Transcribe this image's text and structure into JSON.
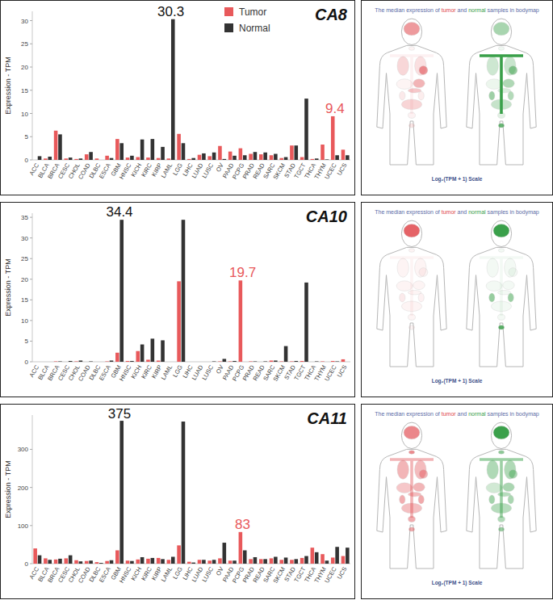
{
  "chart_data": [
    {
      "type": "bar",
      "title": "CA8",
      "y_label": "Expression - TPM",
      "categories": [
        "ACC",
        "BLCA",
        "BRCA",
        "CESC",
        "CHOL",
        "COAD",
        "DLBC",
        "ESCA",
        "GBM",
        "HNSC",
        "KICH",
        "KIRC",
        "KIRP",
        "LAML",
        "LGG",
        "LIHC",
        "LUAD",
        "LUSC",
        "OV",
        "PAAD",
        "PCPG",
        "PRAD",
        "READ",
        "SARC",
        "SKCM",
        "STAD",
        "TGCT",
        "THCA",
        "THYM",
        "UCEC",
        "UCS"
      ],
      "series": [
        {
          "name": "Tumor",
          "color": "#e8595b",
          "values": [
            0,
            0.3,
            6.3,
            0.3,
            0.2,
            1.2,
            0.3,
            0.9,
            4.5,
            0.5,
            0.6,
            0.5,
            0.4,
            0.3,
            5.6,
            0.2,
            1.1,
            0.8,
            3.0,
            1.8,
            2.5,
            1.3,
            1.2,
            1.0,
            0.4,
            3.1,
            0.6,
            0.2,
            3.3,
            9.4,
            2.2
          ]
        },
        {
          "name": "Normal",
          "color": "#333333",
          "values": [
            0.8,
            0.7,
            5.5,
            0.5,
            0.3,
            1.7,
            0,
            0.4,
            3.6,
            0.9,
            4.4,
            4.5,
            2.8,
            30.3,
            3.6,
            0.4,
            1.4,
            1.6,
            0.2,
            0.9,
            1.0,
            1.7,
            1.6,
            1.3,
            0.6,
            3.1,
            13.2,
            0.3,
            0.1,
            1.0,
            1.0
          ]
        }
      ],
      "ylim": [
        0,
        32
      ],
      "yticks": [
        0,
        5,
        10,
        15,
        20,
        25,
        30
      ],
      "grid": false,
      "legend": "top",
      "annotations": [
        {
          "text": "30.3",
          "category": "LAML",
          "color": "#111111"
        },
        {
          "text": "9.4",
          "category": "UCEC",
          "color": "#e8595b"
        }
      ]
    },
    {
      "type": "bar",
      "title": "CA10",
      "y_label": "Expression - TPM",
      "categories": [
        "ACC",
        "BLCA",
        "BRCA",
        "CESC",
        "CHOL",
        "COAD",
        "DLBC",
        "ESCA",
        "GBM",
        "HNSC",
        "KICH",
        "KIRC",
        "KIRP",
        "LAML",
        "LGG",
        "LIHC",
        "LUAD",
        "LUSC",
        "OV",
        "PAAD",
        "PCPG",
        "PRAD",
        "READ",
        "SARC",
        "SKCM",
        "STAD",
        "TGCT",
        "THCA",
        "THYM",
        "UCEC",
        "UCS"
      ],
      "series": [
        {
          "name": "Tumor",
          "color": "#e8595b",
          "values": [
            0,
            0,
            0.1,
            0,
            0.1,
            0,
            0,
            0.1,
            2.2,
            0.2,
            2.6,
            0.5,
            0.3,
            0,
            19.5,
            0,
            0,
            0,
            0.1,
            0.1,
            19.7,
            0.1,
            0,
            0.3,
            0.1,
            0.1,
            0.2,
            0,
            0.1,
            0.2,
            0.6
          ]
        },
        {
          "name": "Normal",
          "color": "#333333",
          "values": [
            0,
            0,
            0.1,
            0.2,
            0.3,
            0.1,
            0,
            0.3,
            34.4,
            0.2,
            4.2,
            5.6,
            5.2,
            0,
            34.4,
            0,
            0,
            0.1,
            0.7,
            0.2,
            0,
            0.1,
            0.1,
            0.3,
            3.8,
            0.2,
            19.2,
            0.1,
            0,
            0.1,
            0
          ]
        }
      ],
      "ylim": [
        0,
        36
      ],
      "yticks": [
        0,
        5,
        10,
        15,
        20,
        25,
        30,
        35
      ],
      "grid": false,
      "annotations": [
        {
          "text": "34.4",
          "category": "GBM",
          "color": "#111111"
        },
        {
          "text": "19.7",
          "category": "PCPG",
          "color": "#e8595b"
        }
      ]
    },
    {
      "type": "bar",
      "title": "CA11",
      "y_label": "Expression - TPM",
      "categories": [
        "ACC",
        "BLCA",
        "BRCA",
        "CESC",
        "CHOL",
        "COAD",
        "DLBC",
        "ESCA",
        "GBM",
        "HNSC",
        "KICH",
        "KIRC",
        "KIRP",
        "LAML",
        "LGG",
        "LIHC",
        "LUAD",
        "LUSC",
        "OV",
        "PAAD",
        "PCPG",
        "PRAD",
        "READ",
        "SARC",
        "SKCM",
        "STAD",
        "TGCT",
        "THCA",
        "THYM",
        "UCEC",
        "UCS"
      ],
      "series": [
        {
          "name": "Tumor",
          "color": "#e8595b",
          "values": [
            40,
            14,
            11,
            14,
            9,
            7,
            4,
            7,
            35,
            8,
            11,
            13,
            15,
            10,
            48,
            5,
            10,
            8,
            14,
            8,
            83,
            12,
            12,
            14,
            10,
            10,
            15,
            42,
            25,
            16,
            20
          ]
        },
        {
          "name": "Normal",
          "color": "#333333",
          "values": [
            22,
            10,
            13,
            22,
            6,
            8,
            2,
            9,
            375,
            7,
            17,
            15,
            12,
            18,
            373,
            3,
            10,
            10,
            55,
            8,
            35,
            17,
            12,
            18,
            16,
            12,
            20,
            30,
            8,
            44,
            42
          ]
        }
      ],
      "ylim": [
        0,
        390
      ],
      "yticks": [
        0,
        100,
        200,
        300
      ],
      "grid": false,
      "annotations": [
        {
          "text": "375",
          "category": "GBM",
          "color": "#111111"
        },
        {
          "text": "83",
          "category": "PCPG",
          "color": "#e8595b"
        }
      ]
    }
  ],
  "bodymaps": [
    {
      "caption": [
        {
          "text": "The median expression of ",
          "color": "#5b6ba6"
        },
        {
          "text": "tumor",
          "color": "#e0474c"
        },
        {
          "text": " and ",
          "color": "#5b6ba6"
        },
        {
          "text": "normal",
          "color": "#3aa04a"
        },
        {
          "text": " samples in bodymap",
          "color": "#5b6ba6"
        }
      ],
      "scale_label": "Log₂(TPM + 1) Scale"
    },
    {
      "caption": [
        {
          "text": "The median expression of ",
          "color": "#5b6ba6"
        },
        {
          "text": "tumor",
          "color": "#e0474c"
        },
        {
          "text": " and ",
          "color": "#5b6ba6"
        },
        {
          "text": "normal",
          "color": "#3aa04a"
        },
        {
          "text": " samples in bodymap",
          "color": "#5b6ba6"
        }
      ],
      "scale_label": "Log₂(TPM + 1) Scale"
    },
    {
      "caption": [
        {
          "text": "The median expression of ",
          "color": "#5b6ba6"
        },
        {
          "text": "tumor",
          "color": "#e0474c"
        },
        {
          "text": " and ",
          "color": "#5b6ba6"
        },
        {
          "text": "normal",
          "color": "#3aa04a"
        },
        {
          "text": " samples in bodymap",
          "color": "#5b6ba6"
        }
      ],
      "scale_label": "Log₂(TPM + 1) Scale"
    }
  ]
}
